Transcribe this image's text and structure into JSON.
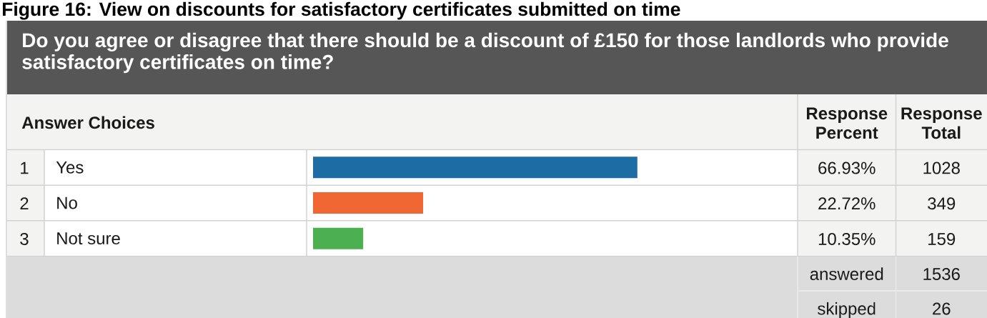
{
  "chart_data": {
    "type": "bar",
    "orientation": "horizontal",
    "title": "Figure 16: View on discounts for satisfactory certificates submitted on time",
    "subtitle": "Do you agree or disagree that there should be a discount of £150 for those landlords who provide satisfactory certificates on time?",
    "ylabel": "Answer Choices",
    "xlabel": "Response Percent",
    "categories": [
      "Yes",
      "No",
      "Not sure"
    ],
    "values": [
      66.93,
      22.72,
      10.35
    ],
    "colors": [
      "#1d6ca4",
      "#f06734",
      "#4caf50"
    ],
    "value_labels": [
      "66.93%",
      "22.72%",
      "10.35%"
    ],
    "xlim": [
      0,
      100
    ],
    "tick_labels": "y",
    "annotations": [
      "1",
      "2",
      "3",
      "Response Total",
      "1028",
      "349",
      "159",
      "answered",
      "1536",
      "skipped",
      "26"
    ]
  }
}
